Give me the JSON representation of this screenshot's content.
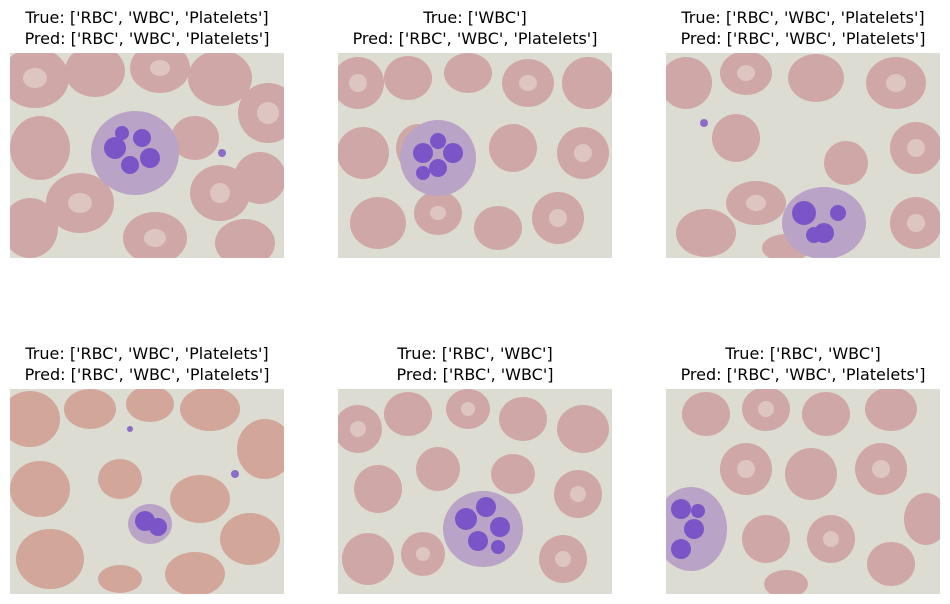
{
  "panels": [
    {
      "true_label": "True: ['RBC', 'WBC', 'Platelets']",
      "pred_label": "Pred: ['RBC', 'WBC', 'Platelets']"
    },
    {
      "true_label": "True: ['WBC']",
      "pred_label": "Pred: ['RBC', 'WBC', 'Platelets']"
    },
    {
      "true_label": "True: ['RBC', 'WBC', 'Platelets']",
      "pred_label": "Pred: ['RBC', 'WBC', 'Platelets']"
    },
    {
      "true_label": "True: ['RBC', 'WBC', 'Platelets']",
      "pred_label": "Pred: ['RBC', 'WBC', 'Platelets']"
    },
    {
      "true_label": "True: ['RBC', 'WBC']",
      "pred_label": "Pred: ['RBC', 'WBC']"
    },
    {
      "true_label": "True: ['RBC', 'WBC']",
      "pred_label": "Pred: ['RBC', 'WBC', 'Platelets']"
    }
  ],
  "colors": {
    "background_smear": "#dcdcd2",
    "rbc": "#cfa7a6",
    "rbc_center": "#e3d3cf",
    "wbc_cytoplasm": "#b9a3c6",
    "wbc_nucleus": "#7b55c7",
    "platelet": "#8c6cc8"
  }
}
